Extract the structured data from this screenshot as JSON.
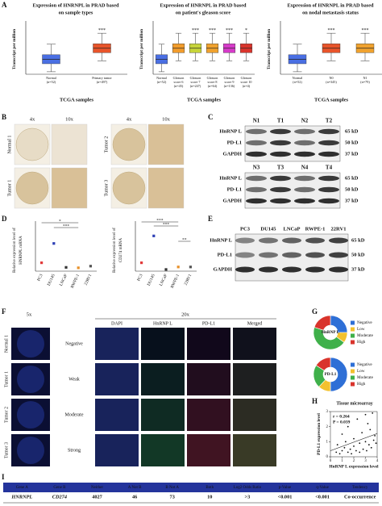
{
  "A": {
    "letter": "A",
    "xlabel": "TCGA samples",
    "ylabel": "Transcript per million",
    "plots": [
      {
        "title": [
          "Expression of HNRNPL in PRAD based",
          "on sample types"
        ],
        "categories": [
          [
            "Normal",
            "(n=52)"
          ],
          [
            "Primary tumor",
            "(n=497)"
          ]
        ],
        "colors": [
          "#4a6fe3",
          "#e8542a"
        ],
        "sig": [
          null,
          "***"
        ]
      },
      {
        "title": [
          "Expression of HNRNPL in PRAD based",
          "on patient's gleason score"
        ],
        "categories": [
          [
            "Normal",
            "(n=52)"
          ],
          [
            "Gleason",
            "score 6",
            "(n=45)"
          ],
          [
            "Gleason",
            "score 7",
            "(n=247)"
          ],
          [
            "Gleason",
            "score 8",
            "(n=64)"
          ],
          [
            "Gleason",
            "score 9",
            "(n=136)"
          ],
          [
            "Gleason",
            "score 10",
            "(n=4)"
          ]
        ],
        "colors": [
          "#4a6fe3",
          "#f29c2b",
          "#c6d43a",
          "#f0a22e",
          "#d63ac9",
          "#d9342c"
        ],
        "sig": [
          null,
          null,
          "***",
          "***",
          "***",
          "*"
        ]
      },
      {
        "title": [
          "Expression of HNRNPL in PRAD based",
          "on nodal metastasis status"
        ],
        "categories": [
          [
            "Normal",
            "(n=52)"
          ],
          [
            "N0",
            "(n=345)"
          ],
          [
            "N1",
            "(n=79)"
          ]
        ],
        "colors": [
          "#4a6fe3",
          "#e8542a",
          "#f0a22e"
        ],
        "sig": [
          null,
          "***",
          "***"
        ]
      }
    ]
  },
  "B": {
    "letter": "B",
    "mags": [
      "4x",
      "10x"
    ],
    "left": [
      "Normal 1",
      "Tumor 1"
    ],
    "right": [
      "Tumor 2",
      "Tumor 3"
    ]
  },
  "C": {
    "letter": "C",
    "blots": [
      [
        "N1",
        "T1",
        "N2",
        "T2"
      ],
      [
        "N3",
        "T3",
        "N4",
        "T4"
      ]
    ],
    "rows": [
      "HnRNP L",
      "PD-L1",
      "GAPDH"
    ],
    "sizes": [
      "65 kD",
      "50 kD",
      "37 kD"
    ]
  },
  "D": {
    "letter": "D",
    "lines": [
      "PC3",
      "DU145",
      "LNCaP",
      "RWPE-1",
      "22RV1"
    ],
    "plots": [
      {
        "ylabel": [
          "Relative expression level of",
          "HNRNPL mRNA"
        ],
        "values": [
          1.0,
          3.3,
          0.45,
          0.4,
          0.6
        ],
        "colors": [
          "#e23b3b",
          "#2d3fb5",
          "#333333",
          "#e8912a",
          "#555555"
        ],
        "ylim": [
          0,
          5
        ],
        "sig": [
          "*",
          "***"
        ]
      },
      {
        "ylabel": [
          "Relative expression level of",
          "CD274 mRNA"
        ],
        "values": [
          1.0,
          4.2,
          0.2,
          0.5,
          0.5
        ],
        "colors": [
          "#e23b3b",
          "#2d3fb5",
          "#333333",
          "#e8912a",
          "#555555"
        ],
        "ylim": [
          0,
          5
        ],
        "sig": [
          "***",
          "***",
          "**"
        ]
      }
    ]
  },
  "E": {
    "letter": "E",
    "lines": [
      "PC3",
      "DU145",
      "LNCaP",
      "RWPE-1",
      "22RV1"
    ],
    "rows": [
      "HnRNP L",
      "PD-L1",
      "GAPDH"
    ],
    "sizes": [
      "65 kD",
      "50 kD",
      "37 kD"
    ]
  },
  "F": {
    "letter": "F",
    "mag5": "5x",
    "mag20": "20x",
    "channels": [
      "DAPI",
      "HnRNP L",
      "PD-L1",
      "Merged"
    ],
    "samples": [
      "Normal 1",
      "Tumor 1",
      "Tumor 2",
      "Tumor 3"
    ],
    "levels": [
      "Negative",
      "Weak",
      "Moderate",
      "Strong"
    ]
  },
  "G": {
    "letter": "G",
    "legend": [
      {
        "name": "Negative",
        "color": "#2e6fd6"
      },
      {
        "name": "Low",
        "color": "#f2c12e"
      },
      {
        "name": "Moderate",
        "color": "#3fb04a"
      },
      {
        "name": "High",
        "color": "#d9342c"
      }
    ],
    "donuts": [
      {
        "label": "HnRNP L",
        "values": [
          25,
          10,
          45,
          20
        ]
      },
      {
        "label": "PD-L1",
        "values": [
          50,
          12,
          22,
          16
        ]
      }
    ]
  },
  "H": {
    "letter": "H",
    "title": "Tissue microarray",
    "r": "r = 0.264",
    "p": "P = 0.039",
    "xlabel": "HnRNP L expression level",
    "ylabel": "PD-L1 expression level",
    "xlim": [
      0,
      4
    ],
    "ylim": [
      0,
      3
    ],
    "xticks": [
      0,
      1,
      2,
      3,
      4
    ],
    "yticks": [
      0,
      1,
      2,
      3
    ],
    "x": [
      0.5,
      0.6,
      0.8,
      1.0,
      1.0,
      1.2,
      1.3,
      1.5,
      1.5,
      1.7,
      1.8,
      2.0,
      2.0,
      2.2,
      2.3,
      2.5,
      2.5,
      2.7,
      2.8,
      3.0,
      3.0,
      3.1,
      3.2,
      3.3,
      3.4,
      3.5,
      3.6,
      3.7,
      3.8,
      3.9
    ],
    "y": [
      0.3,
      0.8,
      0.2,
      1.5,
      0.4,
      0.6,
      1.0,
      0.3,
      2.0,
      0.5,
      0.2,
      1.2,
      0.7,
      0.4,
      2.5,
      0.9,
      0.3,
      1.6,
      0.5,
      2.8,
      1.0,
      0.4,
      2.2,
      0.8,
      1.8,
      0.6,
      2.9,
      1.1,
      1.4,
      0.9
    ]
  },
  "I": {
    "letter": "I",
    "header": [
      "Gene A",
      "Gene B",
      "Neither",
      "A Not B",
      "B Not A",
      "Both",
      "Log2 Odds Ratio",
      "p-Value",
      "q-Value",
      "Tendency"
    ],
    "row": [
      "HNRNPL",
      "CD274",
      "4027",
      "46",
      "73",
      "10",
      ">3",
      "<0.001",
      "<0.001",
      "Co-occurrence"
    ]
  }
}
